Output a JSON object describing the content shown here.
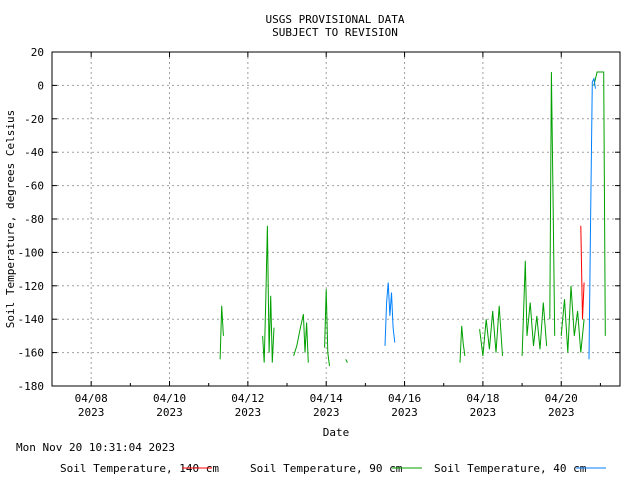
{
  "chart_data": {
    "type": "line",
    "title": "USGS PROVISIONAL DATA",
    "subtitle": "SUBJECT TO REVISION",
    "xlabel": "Date",
    "ylabel": "Soil Temperature, degrees Celsius",
    "ylim": [
      -180,
      20
    ],
    "y_ticks": [
      20,
      0,
      -20,
      -40,
      -60,
      -80,
      -100,
      -120,
      -140,
      -160,
      -180
    ],
    "x_range": [
      "2023-04-07 00:00",
      "2023-04-21 12:00"
    ],
    "x_ticks": [
      {
        "date": "2023-04-08",
        "label_line1": "04/08",
        "label_line2": "2023"
      },
      {
        "date": "2023-04-10",
        "label_line1": "04/10",
        "label_line2": "2023"
      },
      {
        "date": "2023-04-12",
        "label_line1": "04/12",
        "label_line2": "2023"
      },
      {
        "date": "2023-04-14",
        "label_line1": "04/14",
        "label_line2": "2023"
      },
      {
        "date": "2023-04-16",
        "label_line1": "04/16",
        "label_line2": "2023"
      },
      {
        "date": "2023-04-18",
        "label_line1": "04/18",
        "label_line2": "2023"
      },
      {
        "date": "2023-04-20",
        "label_line1": "04/20",
        "label_line2": "2023"
      }
    ],
    "grid": true,
    "legend_position": "bottom",
    "timestamp": "Mon Nov 20 10:31:04 2023",
    "series": [
      {
        "name": "Soil Temperature, 140 cm",
        "color": "#ff0000",
        "segments": [
          [
            [
              "2023-04-20 12:00",
              -84
            ],
            [
              "2023-04-20 13:00",
              -140
            ],
            [
              "2023-04-20 14:00",
              -118
            ]
          ]
        ]
      },
      {
        "name": "Soil Temperature, 90 cm",
        "color": "#00a000",
        "segments": [
          [
            [
              "2023-04-11 07:00",
              -164
            ],
            [
              "2023-04-11 08:00",
              -132
            ],
            [
              "2023-04-11 09:00",
              -150
            ]
          ],
          [
            [
              "2023-04-12 09:00",
              -150
            ],
            [
              "2023-04-12 10:00",
              -166
            ],
            [
              "2023-04-12 11:00",
              -128
            ],
            [
              "2023-04-12 12:00",
              -84
            ],
            [
              "2023-04-12 13:00",
              -160
            ],
            [
              "2023-04-12 14:00",
              -126
            ],
            [
              "2023-04-12 15:00",
              -166
            ],
            [
              "2023-04-12 16:00",
              -145
            ]
          ],
          [
            [
              "2023-04-13 04:00",
              -162
            ],
            [
              "2023-04-13 06:00",
              -156
            ],
            [
              "2023-04-13 08:00",
              -146
            ],
            [
              "2023-04-13 10:00",
              -137
            ],
            [
              "2023-04-13 11:00",
              -160
            ],
            [
              "2023-04-13 12:00",
              -142
            ],
            [
              "2023-04-13 13:00",
              -166
            ]
          ],
          [
            [
              "2023-04-13 23:00",
              -157
            ],
            [
              "2023-04-14 00:00",
              -122
            ],
            [
              "2023-04-14 01:00",
              -160
            ],
            [
              "2023-04-14 02:00",
              -168
            ]
          ],
          [
            [
              "2023-04-14 12:00",
              -164
            ],
            [
              "2023-04-14 13:00",
              -166
            ]
          ],
          [
            [
              "2023-04-17 10:00",
              -166
            ],
            [
              "2023-04-17 11:00",
              -144
            ],
            [
              "2023-04-17 12:00",
              -155
            ],
            [
              "2023-04-17 13:00",
              -162
            ]
          ],
          [
            [
              "2023-04-17 22:00",
              -146
            ],
            [
              "2023-04-18 00:00",
              -162
            ],
            [
              "2023-04-18 02:00",
              -140
            ],
            [
              "2023-04-18 04:00",
              -158
            ],
            [
              "2023-04-18 06:00",
              -135
            ],
            [
              "2023-04-18 08:00",
              -160
            ],
            [
              "2023-04-18 10:00",
              -132
            ],
            [
              "2023-04-18 12:00",
              -162
            ]
          ],
          [
            [
              "2023-04-19 00:00",
              -162
            ],
            [
              "2023-04-19 02:00",
              -105
            ],
            [
              "2023-04-19 03:00",
              -150
            ],
            [
              "2023-04-19 05:00",
              -130
            ],
            [
              "2023-04-19 07:00",
              -156
            ],
            [
              "2023-04-19 09:00",
              -138
            ],
            [
              "2023-04-19 11:00",
              -158
            ],
            [
              "2023-04-19 13:00",
              -130
            ],
            [
              "2023-04-19 15:00",
              -156
            ]
          ],
          [
            [
              "2023-04-19 17:00",
              -140
            ],
            [
              "2023-04-19 18:00",
              8
            ],
            [
              "2023-04-19 19:00",
              -70
            ],
            [
              "2023-04-19 20:00",
              -150
            ]
          ],
          [
            [
              "2023-04-20 00:00",
              -150
            ],
            [
              "2023-04-20 02:00",
              -128
            ],
            [
              "2023-04-20 04:00",
              -160
            ],
            [
              "2023-04-20 06:00",
              -120
            ],
            [
              "2023-04-20 08:00",
              -150
            ],
            [
              "2023-04-20 10:00",
              -135
            ],
            [
              "2023-04-20 12:00",
              -160
            ],
            [
              "2023-04-20 14:00",
              -140
            ]
          ],
          [
            [
              "2023-04-20 20:00",
              0
            ],
            [
              "2023-04-20 22:00",
              8
            ],
            [
              "2023-04-21 00:00",
              8
            ],
            [
              "2023-04-21 02:00",
              8
            ],
            [
              "2023-04-21 03:00",
              -150
            ]
          ]
        ]
      },
      {
        "name": "Soil Temperature, 40 cm",
        "color": "#0080ff",
        "segments": [
          [
            [
              "2023-04-15 12:00",
              -156
            ],
            [
              "2023-04-15 13:00",
              -130
            ],
            [
              "2023-04-15 14:00",
              -118
            ],
            [
              "2023-04-15 15:00",
              -138
            ],
            [
              "2023-04-15 16:00",
              -124
            ],
            [
              "2023-04-15 17:00",
              -145
            ],
            [
              "2023-04-15 18:00",
              -154
            ]
          ],
          [
            [
              "2023-04-20 17:00",
              -164
            ],
            [
              "2023-04-20 18:00",
              -80
            ],
            [
              "2023-04-20 19:00",
              2
            ],
            [
              "2023-04-20 20:00",
              4
            ],
            [
              "2023-04-20 21:00",
              -2
            ]
          ]
        ]
      }
    ]
  }
}
